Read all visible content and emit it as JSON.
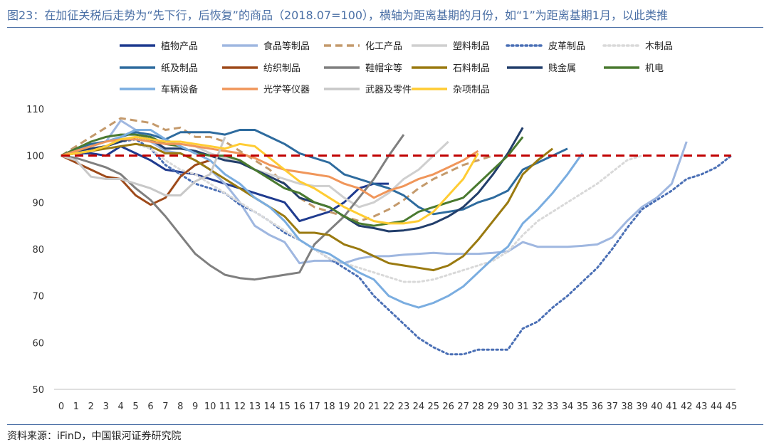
{
  "header": {
    "title": "图23：在加征关税后走势为“先下行，后恢复”的商品（2018.07=100），横轴为距离基期的月份，如“1”为距离基期1月，以此类推"
  },
  "footer": {
    "source": "资料来源：iFinD，中国银河证券研究院"
  },
  "chart_data": {
    "type": "line",
    "title": "",
    "xlabel": "",
    "ylabel": "",
    "xlim": [
      0,
      45
    ],
    "ylim": [
      50,
      110
    ],
    "x_ticks": [
      0,
      1,
      2,
      3,
      4,
      5,
      6,
      7,
      8,
      9,
      10,
      11,
      12,
      13,
      14,
      15,
      16,
      17,
      18,
      19,
      20,
      21,
      22,
      23,
      24,
      25,
      26,
      27,
      28,
      29,
      30,
      31,
      32,
      33,
      34,
      35,
      36,
      37,
      38,
      39,
      40,
      41,
      42,
      43,
      44,
      45
    ],
    "y_ticks": [
      50,
      60,
      70,
      80,
      90,
      100,
      110
    ],
    "grid": false,
    "legend_position": "top",
    "reference_line": {
      "y": 100,
      "color": "#c00000",
      "style": "dashed"
    },
    "series": [
      {
        "name": "植物产品",
        "color": "#1f3b8f",
        "style": "solid",
        "values": [
          100,
          100.5,
          100.5,
          100,
          102,
          100.5,
          99,
          97,
          96.5,
          96,
          95,
          94,
          93,
          92,
          91,
          90,
          86,
          87,
          88,
          90,
          93,
          94,
          94,
          null,
          null,
          null,
          null,
          null,
          null,
          null,
          null,
          null,
          null,
          null,
          null,
          null,
          null,
          null,
          null,
          null,
          null,
          null,
          null,
          null,
          null,
          null
        ]
      },
      {
        "name": "食品等制品",
        "color": "#9fb7e0",
        "style": "solid",
        "values": [
          100,
          101,
          102,
          103,
          107.5,
          105.5,
          103,
          101,
          100.5,
          99,
          97,
          94,
          90,
          85,
          83,
          81.5,
          77,
          77.5,
          77.5,
          77,
          78,
          78.5,
          78.5,
          78.8,
          79,
          79.2,
          79,
          79,
          79,
          79.2,
          79.5,
          81.5,
          80.5,
          80.5,
          80.5,
          80.7,
          81,
          82.5,
          86,
          89,
          91,
          94,
          103,
          null,
          null,
          null
        ]
      },
      {
        "name": "化工产品",
        "color": "#c49a6c",
        "style": "dashed",
        "values": [
          100,
          102,
          104,
          106,
          108,
          107.5,
          107,
          105.5,
          106,
          104,
          104,
          103,
          101,
          99,
          97,
          94,
          91,
          89,
          88,
          87,
          86,
          87,
          88.5,
          90.5,
          93,
          95,
          96.5,
          98,
          99,
          100,
          null,
          null,
          null,
          null,
          null,
          null,
          null,
          null,
          null,
          null,
          null,
          null,
          null,
          null,
          null,
          null
        ]
      },
      {
        "name": "塑料制品",
        "color": "#cfcfcf",
        "style": "solid",
        "values": [
          100,
          100.5,
          101,
          102,
          103,
          104,
          103.5,
          103,
          102.5,
          102,
          100.5,
          99.5,
          98.5,
          97,
          96,
          95,
          94,
          93.5,
          93.5,
          91,
          89,
          90,
          92,
          95,
          97,
          100,
          103,
          null,
          null,
          null,
          null,
          null,
          null,
          null,
          null,
          null,
          null,
          null,
          null,
          null,
          null,
          null,
          null,
          null,
          null,
          null
        ]
      },
      {
        "name": "皮革制品",
        "color": "#4a6fb5",
        "style": "dotted",
        "values": [
          100,
          101,
          101.5,
          102,
          103,
          103.5,
          101.5,
          98,
          96,
          94,
          93,
          92,
          89.5,
          88,
          86,
          83.5,
          82,
          80,
          78,
          76,
          74,
          70,
          67,
          64,
          61,
          59,
          57.5,
          57.5,
          58.5,
          58.5,
          58.5,
          63,
          64.5,
          67.5,
          70,
          73,
          76,
          80,
          84.5,
          88.5,
          90.5,
          92.5,
          95,
          96,
          97.5,
          100
        ]
      },
      {
        "name": "木制品",
        "color": "#d9d9d9",
        "style": "dotted",
        "values": [
          100,
          100.5,
          101,
          101.5,
          102,
          102.5,
          101.5,
          99,
          97,
          96,
          94,
          92,
          90,
          88,
          86,
          84,
          82,
          80,
          78,
          77,
          76,
          75,
          74,
          73,
          73,
          73.5,
          74.5,
          75.5,
          76.5,
          77.5,
          79.5,
          83,
          86,
          88,
          90,
          92,
          94,
          96.5,
          99,
          100,
          null,
          null,
          null,
          null,
          null,
          null
        ]
      },
      {
        "name": "纸及制品",
        "color": "#2e6b9e",
        "style": "solid",
        "values": [
          100,
          101.5,
          102.5,
          103,
          104,
          105,
          104.5,
          103.5,
          105,
          105,
          105,
          104.5,
          105.5,
          105.5,
          104,
          102.5,
          100.5,
          99.5,
          98.5,
          96,
          95,
          94,
          93,
          91.5,
          89,
          87.5,
          88,
          88.5,
          90,
          91,
          92.5,
          97,
          98.5,
          100,
          101.5,
          null,
          null,
          null,
          null,
          null,
          null,
          null,
          null,
          null,
          null,
          null
        ]
      },
      {
        "name": "纺织制品",
        "color": "#9e4a1a",
        "style": "solid",
        "values": [
          100,
          98.5,
          97,
          95.5,
          95,
          91.5,
          89.5,
          91,
          95.5,
          98,
          99,
          null,
          null,
          null,
          null,
          null,
          null,
          null,
          null,
          null,
          null,
          null,
          null,
          null,
          null,
          null,
          null,
          null,
          null,
          null,
          null,
          null,
          null,
          null,
          null,
          null,
          null,
          null,
          null,
          null,
          null,
          null,
          null,
          null,
          null,
          null
        ]
      },
      {
        "name": "鞋帽伞等",
        "color": "#7f7f7f",
        "style": "solid",
        "values": [
          100,
          99.5,
          98.5,
          97.5,
          96,
          93,
          90.5,
          87,
          83,
          79,
          76.5,
          74.5,
          73.8,
          73.5,
          74,
          74.5,
          75,
          81,
          84,
          87,
          91,
          95,
          100,
          104.5,
          null,
          null,
          null,
          null,
          null,
          null,
          null,
          null,
          null,
          null,
          null,
          null,
          null,
          null,
          null,
          null,
          null,
          null,
          null,
          null,
          null,
          null
        ]
      },
      {
        "name": "石料制品",
        "color": "#9a7a10",
        "style": "solid",
        "values": [
          100,
          100.5,
          101,
          101.5,
          102,
          102.5,
          102,
          100.5,
          100.5,
          99,
          97,
          95,
          93,
          91,
          89,
          87,
          83.5,
          83.5,
          83,
          81,
          80,
          78.5,
          77,
          76.5,
          76,
          75.5,
          76.5,
          78.5,
          82,
          86,
          90,
          96,
          99,
          101.5,
          null,
          null,
          null,
          null,
          null,
          null,
          null,
          null,
          null,
          null,
          null,
          null
        ]
      },
      {
        "name": "贱金属",
        "color": "#223e6b",
        "style": "solid",
        "values": [
          100,
          101,
          101.5,
          102,
          103,
          104,
          103.5,
          101.5,
          101.5,
          101,
          100,
          99,
          98.5,
          97,
          95.5,
          94,
          91,
          90,
          89,
          87,
          85,
          84.5,
          83.8,
          84,
          84.5,
          85.5,
          87,
          89,
          92,
          96,
          100.5,
          106,
          null,
          null,
          null,
          null,
          null,
          null,
          null,
          null,
          null,
          null,
          null,
          null,
          null,
          null
        ]
      },
      {
        "name": "机电",
        "color": "#4a7a30",
        "style": "solid",
        "values": [
          100,
          101.5,
          103,
          104,
          104.5,
          104.5,
          104,
          102.5,
          102,
          100.5,
          100,
          100,
          99,
          97,
          95,
          93,
          92,
          90,
          89,
          87,
          85.5,
          85,
          85.5,
          86,
          88,
          89,
          90,
          91,
          94,
          97,
          100,
          104,
          null,
          null,
          null,
          null,
          null,
          null,
          null,
          null,
          null,
          null,
          null,
          null,
          null,
          null
        ]
      },
      {
        "name": "车辆设备",
        "color": "#7aade0",
        "style": "solid",
        "values": [
          100,
          101,
          102,
          103,
          104,
          105.5,
          105.5,
          103.5,
          102,
          100.5,
          99,
          96,
          94,
          91,
          89,
          86,
          82,
          80,
          79,
          77,
          75,
          73.5,
          70,
          68.5,
          67.5,
          68.5,
          70,
          72,
          75,
          78,
          80.5,
          85.5,
          88.5,
          92,
          96,
          100.5,
          null,
          null,
          null,
          null,
          null,
          null,
          null,
          null,
          null,
          null
        ]
      },
      {
        "name": "光学等仪器",
        "color": "#f0965a",
        "style": "solid",
        "values": [
          100,
          101,
          102,
          103,
          103.5,
          103.5,
          103,
          102.5,
          102.5,
          102,
          101.5,
          101,
          100.5,
          99.5,
          98,
          97,
          96.5,
          96,
          95.5,
          94,
          93,
          91,
          92.5,
          93.5,
          95,
          96,
          97.5,
          99,
          101,
          null,
          null,
          null,
          null,
          null,
          null,
          null,
          null,
          null,
          null,
          null,
          null,
          null,
          null,
          null,
          null,
          null
        ]
      },
      {
        "name": "武器及零件",
        "color": "#c8c8c8",
        "style": "solid",
        "values": [
          100,
          99,
          95.5,
          95,
          95,
          94,
          93,
          91.5,
          91.5,
          94.5,
          96,
          104,
          null,
          null,
          null,
          null,
          null,
          null,
          null,
          null,
          null,
          null,
          null,
          null,
          null,
          null,
          null,
          null,
          null,
          null,
          null,
          null,
          null,
          null,
          null,
          null,
          null,
          null,
          null,
          null,
          null,
          null,
          null,
          null,
          null,
          null
        ]
      },
      {
        "name": "杂项制品",
        "color": "#ffcc33",
        "style": "solid",
        "values": [
          100,
          100.5,
          101,
          102,
          103.5,
          104,
          103.5,
          103,
          103,
          102.5,
          102,
          101.5,
          102.5,
          102,
          99.5,
          97,
          94.5,
          93,
          91,
          89,
          87.5,
          86,
          85.5,
          85.5,
          86,
          88,
          91.5,
          95,
          100.5,
          null,
          null,
          null,
          null,
          null,
          null,
          null,
          null,
          null,
          null,
          null,
          null,
          null,
          null,
          null,
          null,
          null
        ]
      }
    ]
  }
}
